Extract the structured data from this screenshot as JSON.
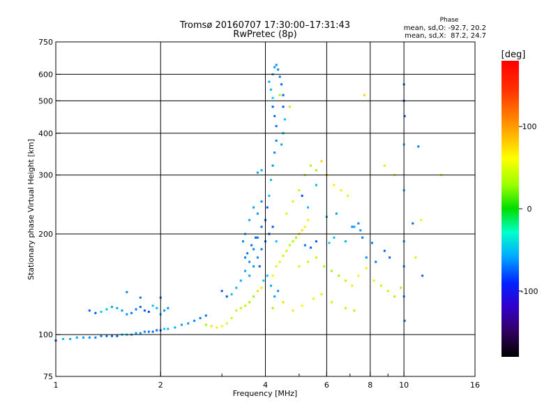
{
  "chart_data": {
    "type": "scatter",
    "title": "Tromsø 20160707 17:30:00–17:31:43",
    "subtitle": "RwPretec (8p)",
    "xlabel": "Frequency [MHz]",
    "ylabel": "Stationary phase Virtual Height [km]",
    "x_scale": "log",
    "y_scale": "log",
    "xlim": [
      1,
      16
    ],
    "ylim": [
      75,
      750
    ],
    "x_ticks": [
      1,
      2,
      4,
      6,
      8,
      10,
      16
    ],
    "x_minor_ticks": [
      3,
      5,
      7,
      9
    ],
    "x_grid": [
      2,
      4,
      6,
      8,
      10
    ],
    "y_ticks": [
      75,
      100,
      200,
      300,
      400,
      500,
      600,
      750
    ],
    "y_grid": [
      100,
      200,
      300,
      400,
      500,
      600
    ],
    "phase_stats": {
      "heading": "Phase",
      "line_o": "mean, sd,O: -92.7, 20.2",
      "line_x": "mean, sd,X:  87.2, 24.7"
    },
    "colorbar": {
      "label": "[deg]",
      "range": [
        -180,
        180
      ],
      "ticks": [
        100,
        0,
        -100
      ],
      "colormap": "rainbow"
    },
    "series": [
      {
        "mode": "O",
        "phase": -95,
        "points": [
          [
            1.0,
            96
          ],
          [
            1.05,
            97
          ],
          [
            1.1,
            97
          ],
          [
            1.15,
            98
          ],
          [
            1.2,
            98
          ],
          [
            1.25,
            98
          ],
          [
            1.3,
            98
          ],
          [
            1.35,
            99
          ],
          [
            1.4,
            99
          ],
          [
            1.45,
            99
          ],
          [
            1.5,
            99
          ],
          [
            1.55,
            100
          ],
          [
            1.6,
            100
          ],
          [
            1.65,
            100
          ],
          [
            1.7,
            101
          ],
          [
            1.75,
            101
          ],
          [
            1.8,
            102
          ],
          [
            1.85,
            102
          ],
          [
            1.9,
            102
          ],
          [
            1.95,
            103
          ],
          [
            2.0,
            103
          ],
          [
            2.05,
            104
          ],
          [
            2.1,
            104
          ],
          [
            2.2,
            105
          ],
          [
            2.3,
            107
          ],
          [
            2.4,
            108
          ],
          [
            2.5,
            110
          ],
          [
            2.6,
            112
          ],
          [
            2.7,
            114
          ],
          [
            1.25,
            118
          ],
          [
            1.3,
            116
          ],
          [
            1.35,
            117
          ],
          [
            1.4,
            119
          ],
          [
            1.45,
            121
          ],
          [
            1.5,
            120
          ],
          [
            1.55,
            118
          ],
          [
            1.6,
            115
          ],
          [
            1.65,
            116
          ],
          [
            1.7,
            119
          ],
          [
            1.75,
            121
          ],
          [
            1.8,
            118
          ],
          [
            1.85,
            117
          ],
          [
            1.9,
            122
          ],
          [
            1.95,
            120
          ],
          [
            2.0,
            115
          ],
          [
            2.05,
            118
          ],
          [
            2.1,
            120
          ],
          [
            1.6,
            134
          ],
          [
            1.75,
            129
          ],
          [
            2.0,
            129
          ],
          [
            3.0,
            135
          ],
          [
            3.1,
            130
          ],
          [
            3.2,
            132
          ],
          [
            3.3,
            138
          ],
          [
            3.4,
            145
          ],
          [
            3.5,
            155
          ],
          [
            3.6,
            165
          ],
          [
            3.7,
            180
          ],
          [
            3.8,
            195
          ],
          [
            3.9,
            210
          ],
          [
            4.0,
            220
          ],
          [
            4.05,
            240
          ],
          [
            4.1,
            260
          ],
          [
            4.15,
            290
          ],
          [
            3.9,
            310
          ],
          [
            3.8,
            305
          ],
          [
            4.2,
            320
          ],
          [
            4.25,
            350
          ],
          [
            4.3,
            380
          ],
          [
            4.3,
            420
          ],
          [
            4.25,
            450
          ],
          [
            4.2,
            480
          ],
          [
            4.2,
            510
          ],
          [
            4.15,
            540
          ],
          [
            4.1,
            570
          ],
          [
            4.2,
            600
          ],
          [
            4.25,
            630
          ],
          [
            4.3,
            640
          ],
          [
            4.35,
            620
          ],
          [
            4.4,
            590
          ],
          [
            4.45,
            560
          ],
          [
            4.5,
            520
          ],
          [
            4.5,
            480
          ],
          [
            4.55,
            440
          ],
          [
            4.5,
            400
          ],
          [
            4.45,
            370
          ],
          [
            3.6,
            150
          ],
          [
            3.7,
            160
          ],
          [
            3.8,
            170
          ],
          [
            3.9,
            180
          ],
          [
            4.0,
            190
          ],
          [
            4.1,
            200
          ],
          [
            4.2,
            210
          ],
          [
            4.3,
            190
          ],
          [
            3.5,
            200
          ],
          [
            3.6,
            220
          ],
          [
            3.7,
            240
          ],
          [
            3.8,
            230
          ],
          [
            3.9,
            250
          ],
          [
            3.55,
            175
          ],
          [
            3.65,
            185
          ],
          [
            3.75,
            195
          ],
          [
            3.85,
            160
          ],
          [
            3.95,
            145
          ],
          [
            4.05,
            150
          ],
          [
            4.15,
            140
          ],
          [
            4.25,
            130
          ],
          [
            4.35,
            135
          ],
          [
            3.45,
            190
          ],
          [
            3.5,
            170
          ],
          [
            5.2,
            185
          ],
          [
            5.4,
            182
          ],
          [
            5.6,
            190
          ],
          [
            6.1,
            188
          ],
          [
            6.3,
            195
          ],
          [
            6.8,
            190
          ],
          [
            7.2,
            210
          ],
          [
            7.5,
            205
          ],
          [
            7.8,
            170
          ],
          [
            8.1,
            188
          ],
          [
            8.3,
            165
          ],
          [
            8.8,
            178
          ],
          [
            9.1,
            170
          ],
          [
            5.1,
            260
          ],
          [
            5.3,
            240
          ],
          [
            5.6,
            280
          ],
          [
            6.0,
            225
          ],
          [
            6.4,
            230
          ],
          [
            7.1,
            210
          ],
          [
            7.4,
            215
          ],
          [
            7.6,
            195
          ],
          [
            10.0,
            560
          ],
          [
            10.0,
            500
          ],
          [
            10.05,
            450
          ],
          [
            10.0,
            370
          ],
          [
            10.0,
            270
          ],
          [
            10.0,
            190
          ],
          [
            10.0,
            160
          ],
          [
            10.0,
            130
          ],
          [
            10.05,
            110
          ],
          [
            11.0,
            365
          ],
          [
            10.6,
            215
          ],
          [
            11.3,
            150
          ]
        ]
      },
      {
        "mode": "X",
        "phase": 90,
        "points": [
          [
            2.7,
            107
          ],
          [
            2.8,
            106
          ],
          [
            2.9,
            105
          ],
          [
            3.0,
            106
          ],
          [
            3.1,
            108
          ],
          [
            3.2,
            112
          ],
          [
            3.3,
            118
          ],
          [
            3.4,
            120
          ],
          [
            3.5,
            122
          ],
          [
            3.6,
            125
          ],
          [
            3.7,
            130
          ],
          [
            3.8,
            135
          ],
          [
            3.9,
            138
          ],
          [
            4.2,
            150
          ],
          [
            4.3,
            160
          ],
          [
            4.4,
            165
          ],
          [
            4.5,
            172
          ],
          [
            4.6,
            178
          ],
          [
            4.7,
            185
          ],
          [
            4.8,
            190
          ],
          [
            4.9,
            195
          ],
          [
            5.0,
            200
          ],
          [
            5.1,
            205
          ],
          [
            5.2,
            210
          ],
          [
            5.3,
            220
          ],
          [
            4.6,
            230
          ],
          [
            4.8,
            250
          ],
          [
            5.0,
            270
          ],
          [
            5.2,
            300
          ],
          [
            5.4,
            320
          ],
          [
            5.6,
            310
          ],
          [
            5.8,
            330
          ],
          [
            6.0,
            300
          ],
          [
            6.3,
            280
          ],
          [
            6.6,
            270
          ],
          [
            6.9,
            260
          ],
          [
            5.0,
            160
          ],
          [
            5.3,
            165
          ],
          [
            5.6,
            170
          ],
          [
            5.9,
            160
          ],
          [
            6.2,
            155
          ],
          [
            6.5,
            150
          ],
          [
            6.8,
            145
          ],
          [
            7.1,
            140
          ],
          [
            7.4,
            150
          ],
          [
            7.8,
            158
          ],
          [
            8.2,
            145
          ],
          [
            8.6,
            140
          ],
          [
            9.0,
            135
          ],
          [
            9.4,
            130
          ],
          [
            9.8,
            138
          ],
          [
            4.2,
            120
          ],
          [
            4.5,
            125
          ],
          [
            4.8,
            118
          ],
          [
            5.1,
            122
          ],
          [
            5.5,
            128
          ],
          [
            5.8,
            132
          ],
          [
            6.2,
            125
          ],
          [
            6.8,
            120
          ],
          [
            7.2,
            118
          ],
          [
            4.7,
            480
          ],
          [
            4.4,
            520
          ],
          [
            7.7,
            520
          ],
          [
            8.8,
            320
          ],
          [
            9.4,
            300
          ],
          [
            11.2,
            220
          ],
          [
            12.8,
            300
          ],
          [
            10.8,
            170
          ]
        ]
      }
    ]
  }
}
